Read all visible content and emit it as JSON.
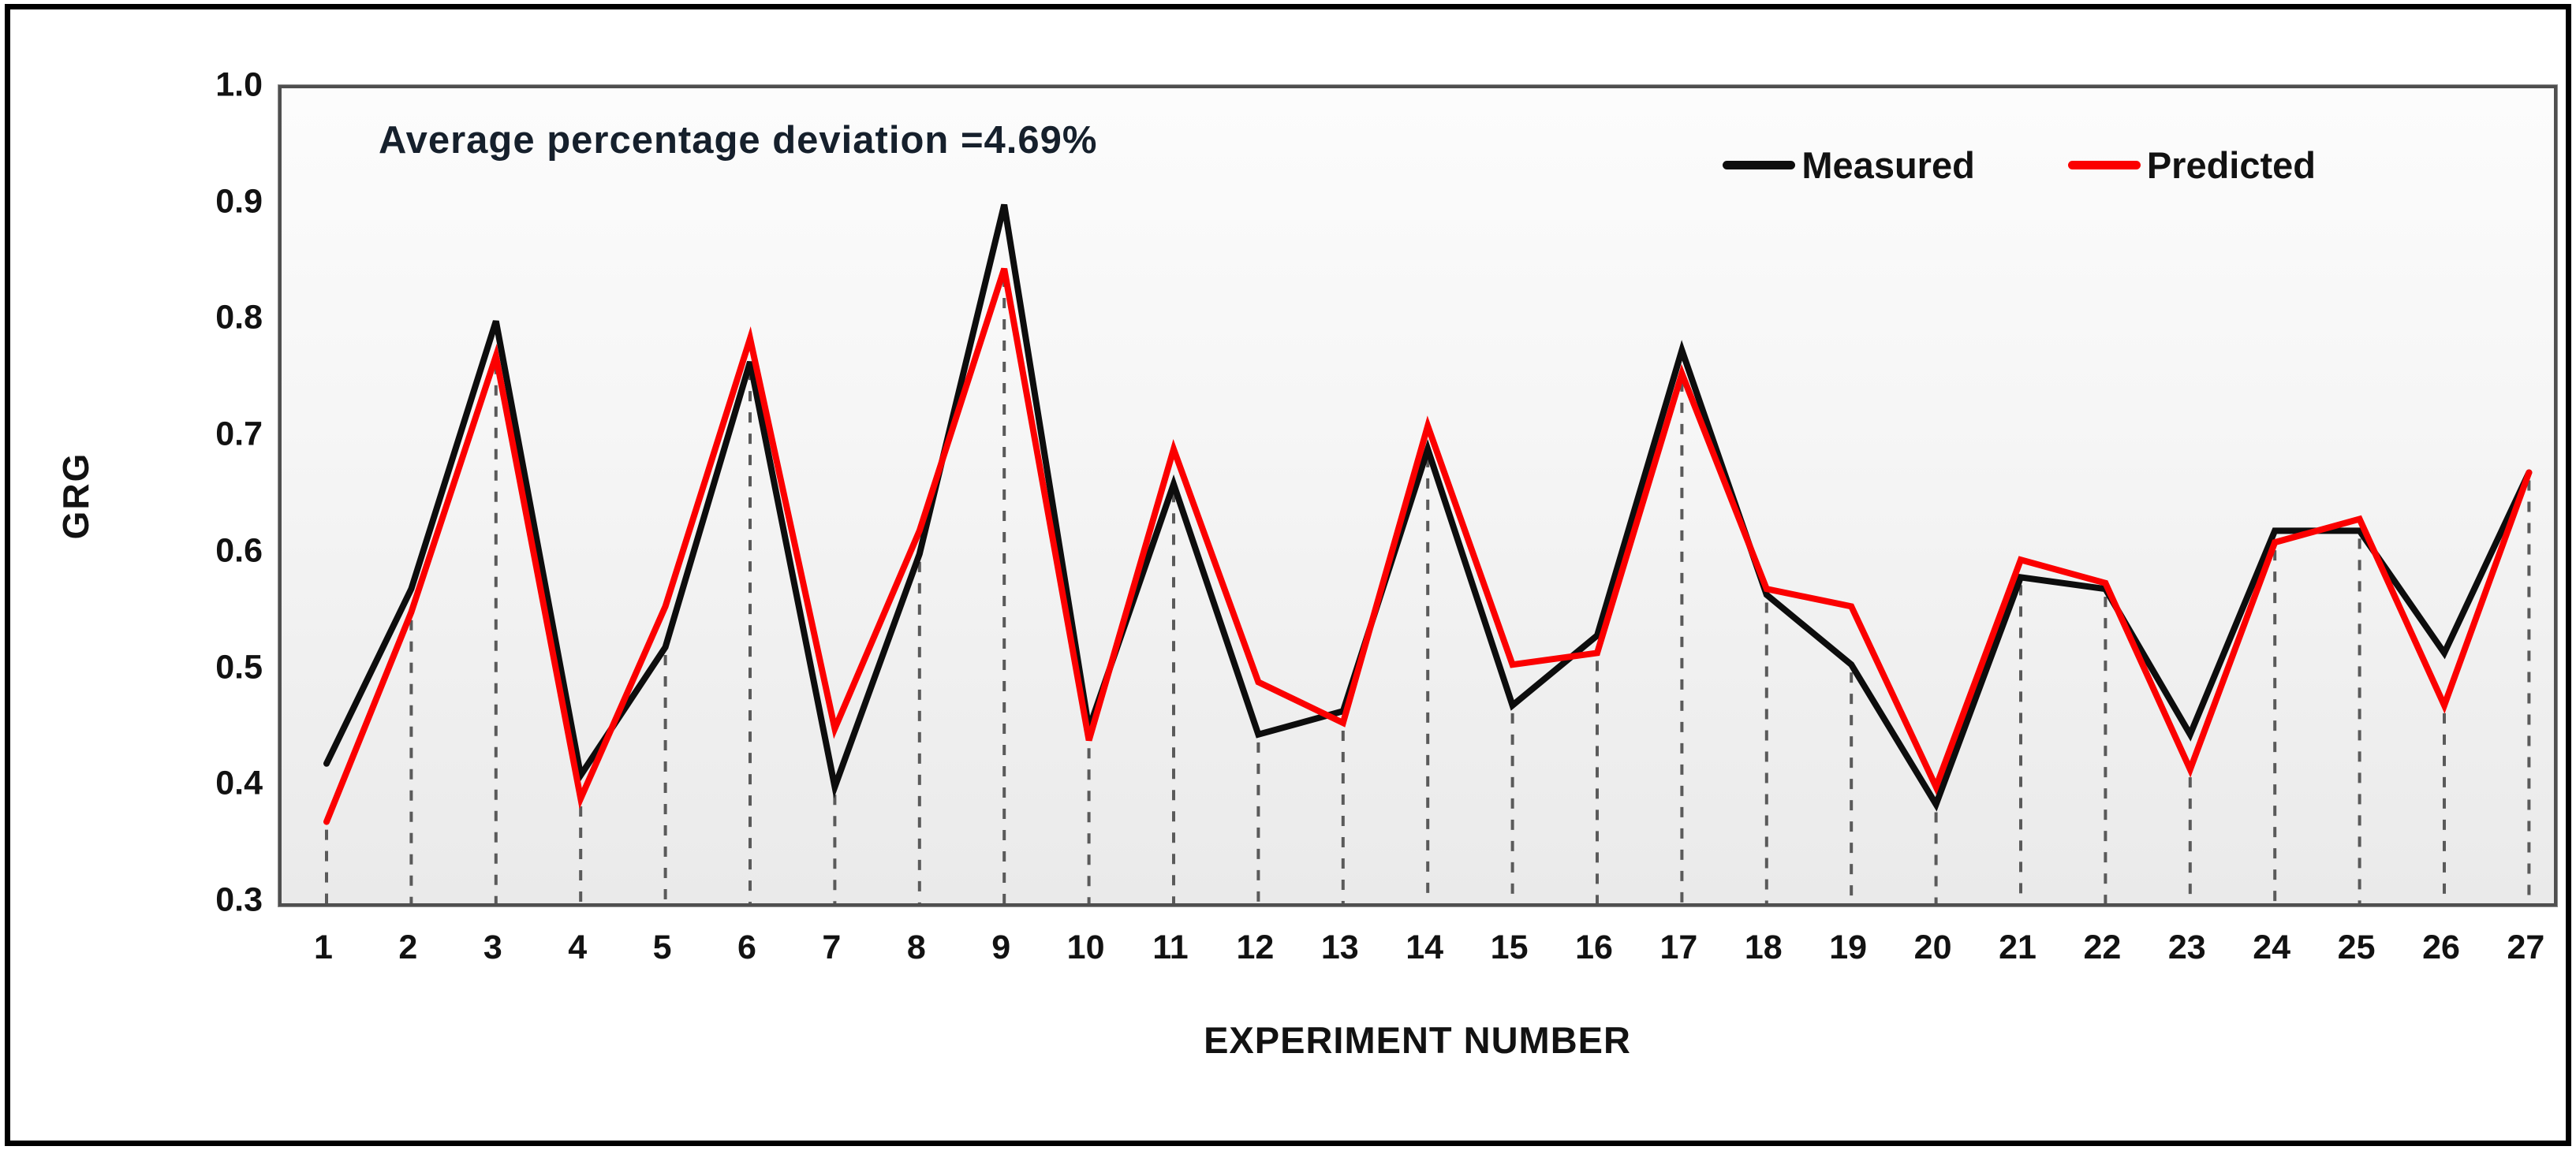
{
  "chart_data": {
    "type": "line",
    "annotation": "Average percentage deviation =4.69%",
    "xlabel": "EXPERIMENT NUMBER",
    "ylabel": "GRG",
    "x": [
      1,
      2,
      3,
      4,
      5,
      6,
      7,
      8,
      9,
      10,
      11,
      12,
      13,
      14,
      15,
      16,
      17,
      18,
      19,
      20,
      21,
      22,
      23,
      24,
      25,
      26,
      27
    ],
    "series": [
      {
        "name": "Measured",
        "color": "#0d0d0d",
        "values": [
          0.42,
          0.57,
          0.8,
          0.41,
          0.52,
          0.765,
          0.4,
          0.6,
          0.9,
          0.45,
          0.66,
          0.445,
          0.465,
          0.69,
          0.47,
          0.53,
          0.775,
          0.565,
          0.505,
          0.385,
          0.58,
          0.57,
          0.445,
          0.62,
          0.62,
          0.515,
          0.67
        ]
      },
      {
        "name": "Predicted",
        "color": "#fb0000",
        "values": [
          0.37,
          0.55,
          0.77,
          0.39,
          0.555,
          0.785,
          0.45,
          0.62,
          0.845,
          0.44,
          0.69,
          0.49,
          0.455,
          0.71,
          0.505,
          0.515,
          0.755,
          0.57,
          0.555,
          0.4,
          0.595,
          0.575,
          0.415,
          0.61,
          0.63,
          0.47,
          0.67
        ]
      }
    ],
    "ylim": [
      0.3,
      1.0
    ],
    "yticks": [
      "0.3",
      "0.4",
      "0.5",
      "0.6",
      "0.7",
      "0.8",
      "0.9",
      "1.0"
    ],
    "grid": "vertical dashed drop-lines from each point to x-axis",
    "legend_position": "top-right inside plot",
    "dropline_color": "#5a5a5a",
    "plot_border_color": "#4f4f4f"
  }
}
